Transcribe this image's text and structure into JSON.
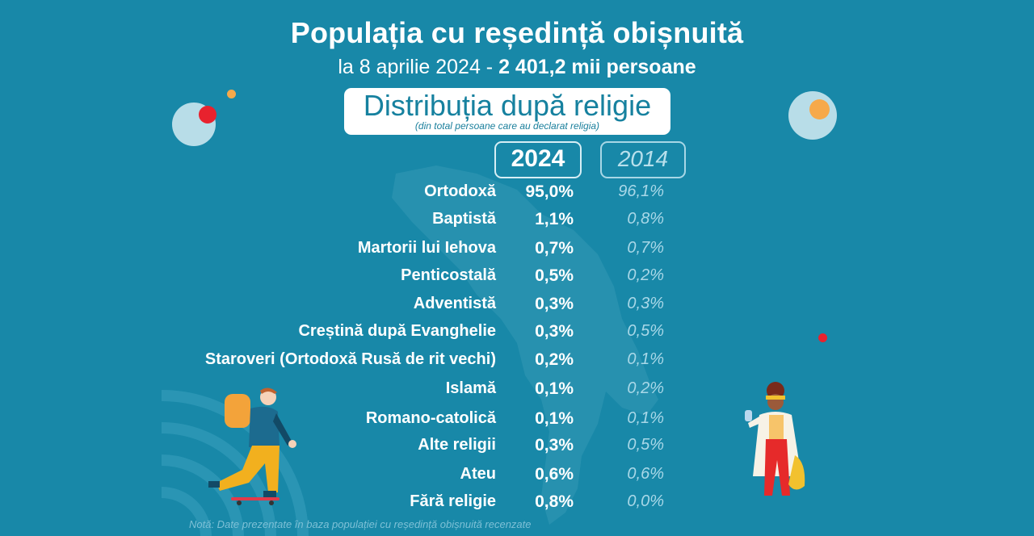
{
  "header": {
    "title": "Populația cu reședință obișnuită",
    "subtitle_prefix": "la 8 aprilie 2024 - ",
    "subtitle_bold": "2 401,2 mii persoane"
  },
  "section": {
    "heading": "Distribuția după religie",
    "subheading": "(din total persoane care au declarat religia)"
  },
  "columns": {
    "current": "2024",
    "previous": "2014"
  },
  "chart_data": {
    "type": "table",
    "title": "Distribuția după religie",
    "subtitle": "(din total persoane care au declarat religia)",
    "unit": "%",
    "columns": [
      "2024",
      "2014"
    ],
    "rows": [
      {
        "label": "Ortodoxă",
        "v2024": "95,0%",
        "v2014": "96,1%"
      },
      {
        "label": "Baptistă",
        "v2024": "1,1%",
        "v2014": "0,8%"
      },
      {
        "label": "Martorii lui Iehova",
        "v2024": "0,7%",
        "v2014": "0,7%"
      },
      {
        "label": "Penticostală",
        "v2024": "0,5%",
        "v2014": "0,2%"
      },
      {
        "label": "Adventistă",
        "v2024": "0,3%",
        "v2014": "0,3%"
      },
      {
        "label": "Creștină după Evanghelie",
        "v2024": "0,3%",
        "v2014": "0,5%"
      },
      {
        "label": "Staroveri (Ortodoxă Rusă de rit vechi)",
        "v2024": "0,2%",
        "v2014": "0,1%"
      },
      {
        "label": "Islamă",
        "v2024": "0,1%",
        "v2014": "0,2%"
      },
      {
        "label": "Romano-catolică",
        "v2024": "0,1%",
        "v2014": "0,1%"
      },
      {
        "label": "Alte religii",
        "v2024": "0,3%",
        "v2014": "0,5%"
      },
      {
        "label": "Ateu",
        "v2024": "0,6%",
        "v2014": "0,6%"
      },
      {
        "label": "Fără religie",
        "v2024": "0,8%",
        "v2014": "0,0%"
      }
    ],
    "series": [
      {
        "name": "2024",
        "values": [
          95.0,
          1.1,
          0.7,
          0.5,
          0.3,
          0.3,
          0.2,
          0.1,
          0.1,
          0.3,
          0.6,
          0.8
        ]
      },
      {
        "name": "2014",
        "values": [
          96.1,
          0.8,
          0.7,
          0.2,
          0.3,
          0.5,
          0.1,
          0.2,
          0.1,
          0.5,
          0.6,
          0.0
        ]
      }
    ]
  },
  "note": "Notă: Date prezentate în baza populației cu reședință obișnuită recenzate",
  "colors": {
    "background": "#1888a8",
    "heading_text": "#16819f",
    "previous_year_text": "#a9d8e8",
    "accent_red": "#e8222e",
    "accent_orange": "#f6a94a",
    "light_circle": "#b8dde8"
  }
}
